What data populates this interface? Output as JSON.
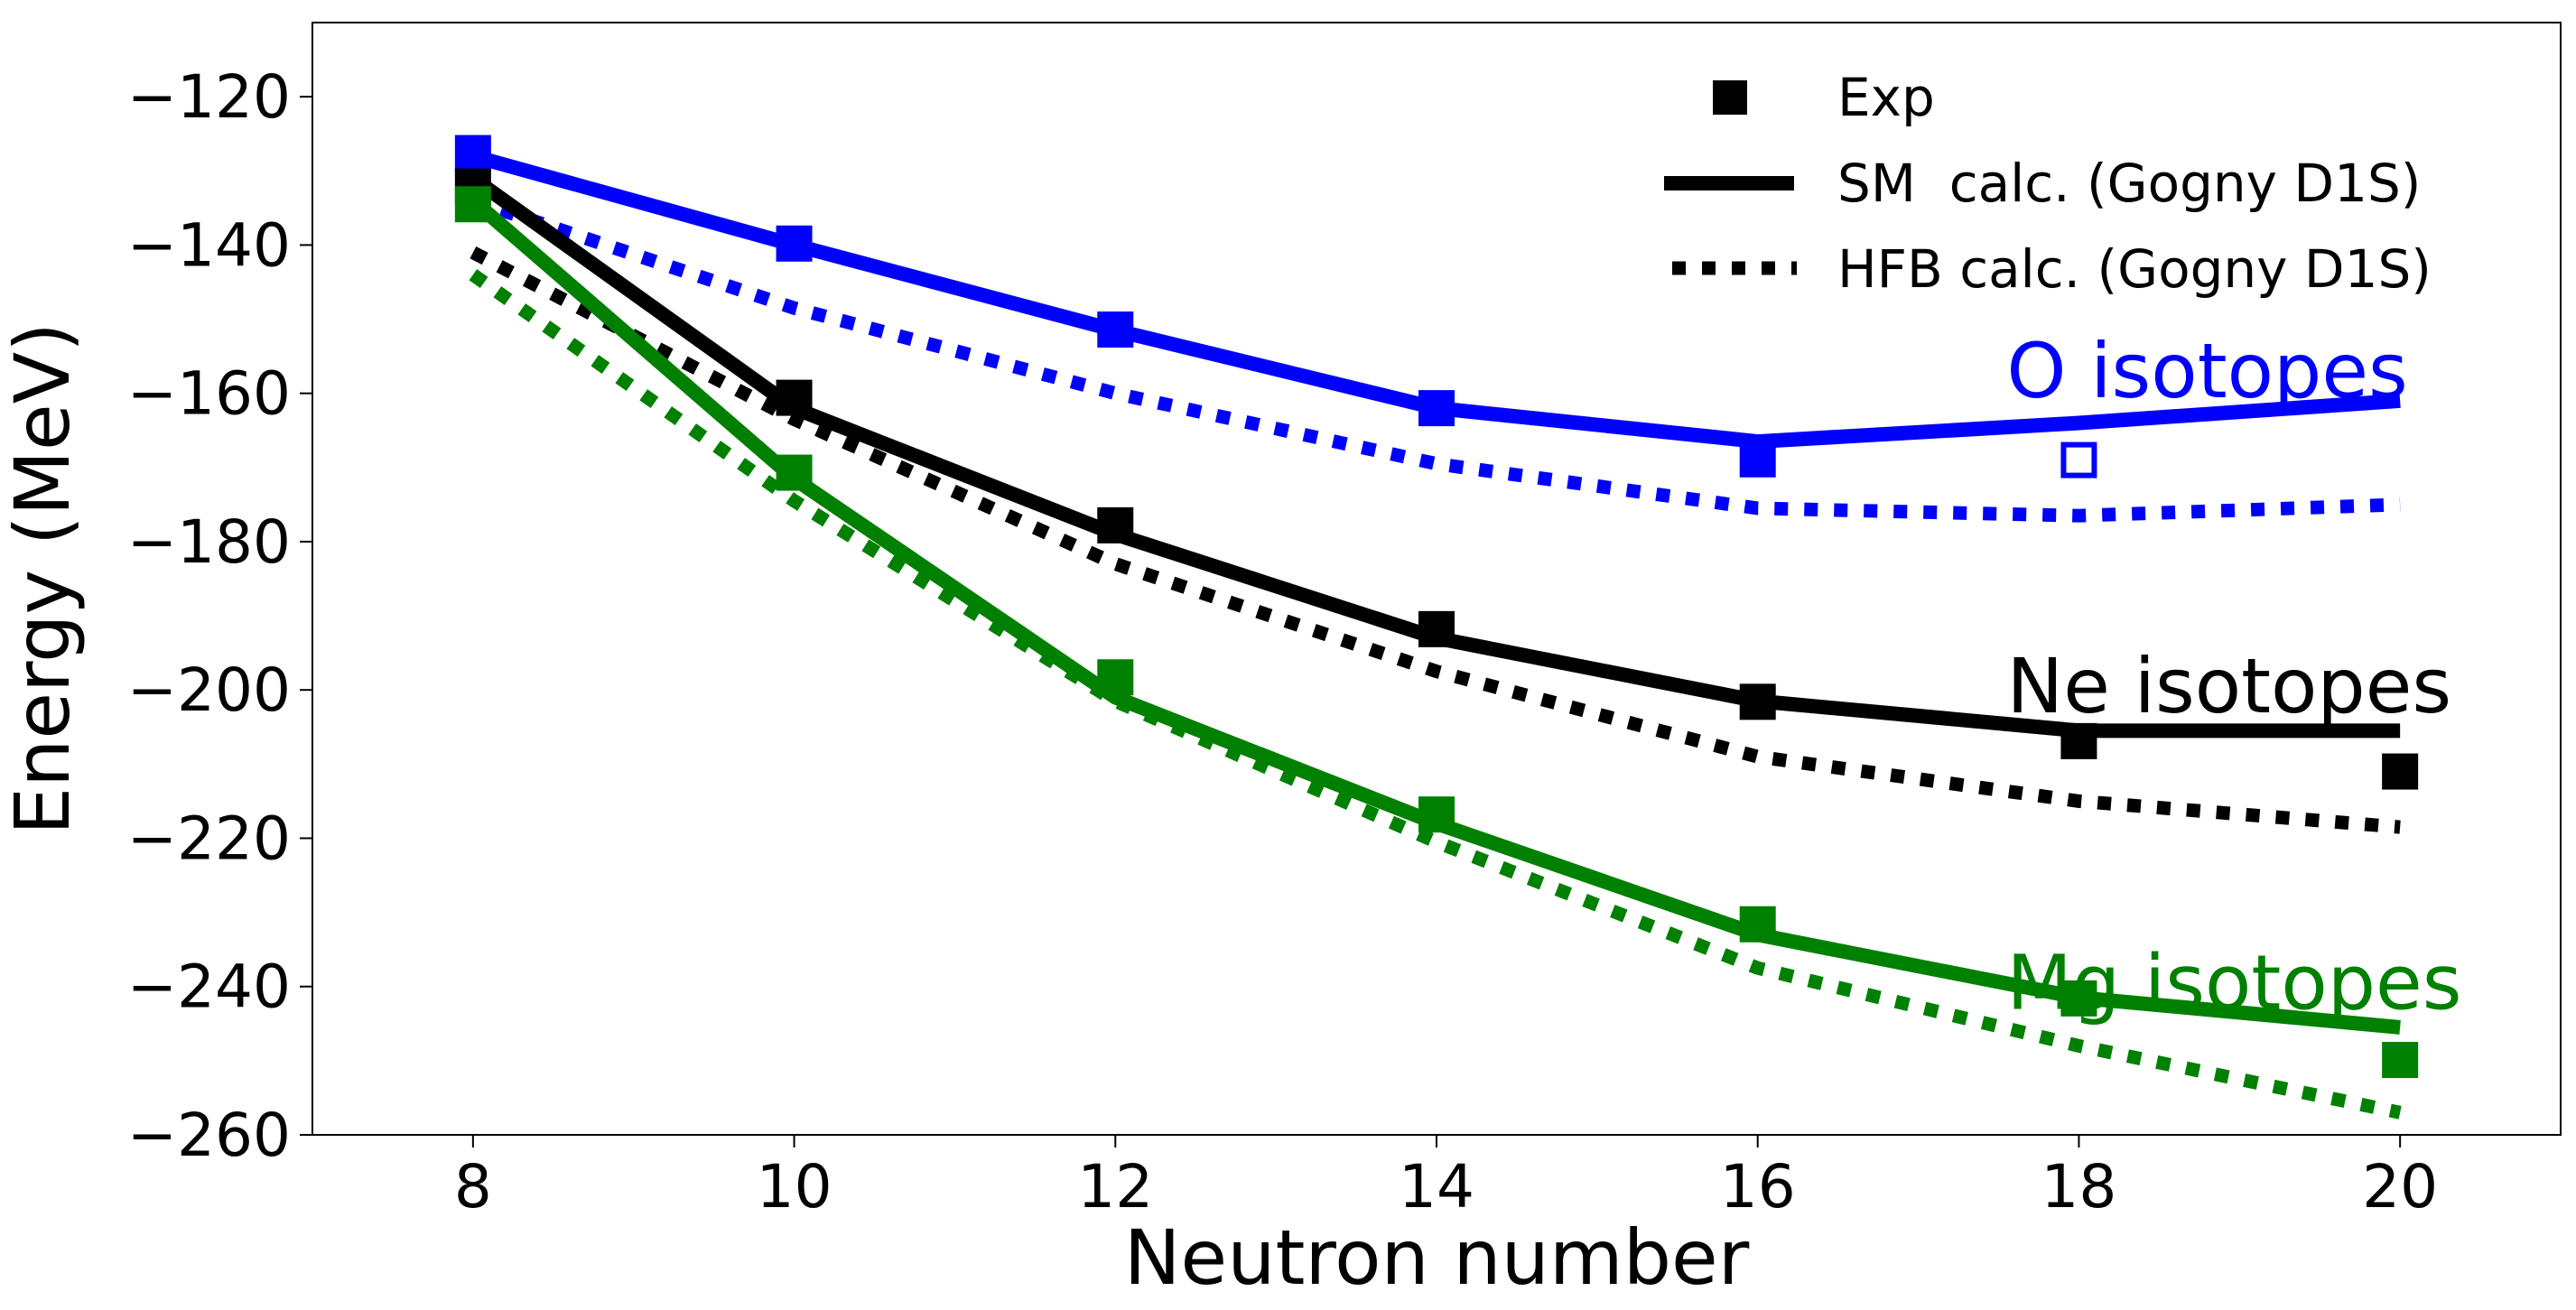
{
  "chart_data": {
    "type": "line",
    "xlabel": "Neutron number",
    "ylabel": "Energy (MeV)",
    "xlim": [
      7,
      21
    ],
    "ylim": [
      -260,
      -110
    ],
    "x_ticks": [
      8,
      10,
      12,
      14,
      16,
      18,
      20
    ],
    "y_ticks": [
      -260,
      -240,
      -220,
      -200,
      -180,
      -160,
      -140,
      -120
    ],
    "x_tick_labels": [
      "8",
      "10",
      "12",
      "14",
      "16",
      "18",
      "20"
    ],
    "y_tick_labels": [
      "−260",
      "−240",
      "−220",
      "−200",
      "−180",
      "−160",
      "−140",
      "−120"
    ],
    "grid": false,
    "legend": {
      "position": "top-right",
      "entries": [
        {
          "label": "Exp",
          "style": "square-marker"
        },
        {
          "label": "SM  calc. (Gogny D1S)",
          "style": "solid-line"
        },
        {
          "label": "HFB calc. (Gogny D1S)",
          "style": "dotted-line"
        }
      ]
    },
    "series": [
      {
        "name": "O isotopes",
        "color": "#0000ff",
        "x": [
          8,
          10,
          12,
          14,
          16,
          18,
          20
        ],
        "sm": [
          -128,
          -140,
          -151.5,
          -162,
          -166.5,
          -164,
          -161
        ],
        "hfb": [
          -134,
          -148.5,
          -160,
          -169.5,
          -175.5,
          -176.5,
          -175
        ],
        "exp": [
          {
            "x": 8,
            "y": -127.6,
            "filled": true
          },
          {
            "x": 10,
            "y": -139.8,
            "filled": true
          },
          {
            "x": 12,
            "y": -151.4,
            "filled": true
          },
          {
            "x": 14,
            "y": -162,
            "filled": true
          },
          {
            "x": 16,
            "y": -168.9,
            "filled": true
          },
          {
            "x": 18,
            "y": -169,
            "filled": false
          }
        ]
      },
      {
        "name": "Ne isotopes",
        "color": "#000000",
        "x": [
          8,
          10,
          12,
          14,
          16,
          18,
          20
        ],
        "sm": [
          -131,
          -162,
          -179,
          -193,
          -201.5,
          -205.5,
          -205.5
        ],
        "hfb": [
          -141,
          -163.5,
          -183,
          -197.5,
          -209,
          -215,
          -218.5
        ],
        "exp": [
          {
            "x": 8,
            "y": -132.1,
            "filled": true
          },
          {
            "x": 10,
            "y": -160.6,
            "filled": true
          },
          {
            "x": 12,
            "y": -177.8,
            "filled": true
          },
          {
            "x": 14,
            "y": -191.8,
            "filled": true
          },
          {
            "x": 16,
            "y": -201.6,
            "filled": true
          },
          {
            "x": 18,
            "y": -206.9,
            "filled": true
          },
          {
            "x": 20,
            "y": -211,
            "filled": true
          }
        ]
      },
      {
        "name": "Mg isotopes",
        "color": "#008000",
        "x": [
          8,
          10,
          12,
          14,
          16,
          18,
          20
        ],
        "sm": [
          -134,
          -171.5,
          -201,
          -218,
          -233,
          -241.5,
          -245.5
        ],
        "hfb": [
          -144,
          -174.5,
          -201.5,
          -220.5,
          -237.5,
          -248,
          -257
        ],
        "exp": [
          {
            "x": 8,
            "y": -134.5,
            "filled": true
          },
          {
            "x": 10,
            "y": -170.7,
            "filled": true
          },
          {
            "x": 12,
            "y": -198.3,
            "filled": true
          },
          {
            "x": 14,
            "y": -216.8,
            "filled": true
          },
          {
            "x": 16,
            "y": -231.6,
            "filled": true
          },
          {
            "x": 18,
            "y": -241.6,
            "filled": true
          },
          {
            "x": 20,
            "y": -249.9,
            "filled": true
          }
        ]
      }
    ],
    "annotations": [
      {
        "text": "O isotopes",
        "color": "#0000ff",
        "x": 17.55,
        "y": -160.5
      },
      {
        "text": "Ne isotopes",
        "color": "#000000",
        "x": 17.55,
        "y": -203
      },
      {
        "text": "Mg isotopes",
        "color": "#008000",
        "x": 17.55,
        "y": -243
      }
    ]
  }
}
